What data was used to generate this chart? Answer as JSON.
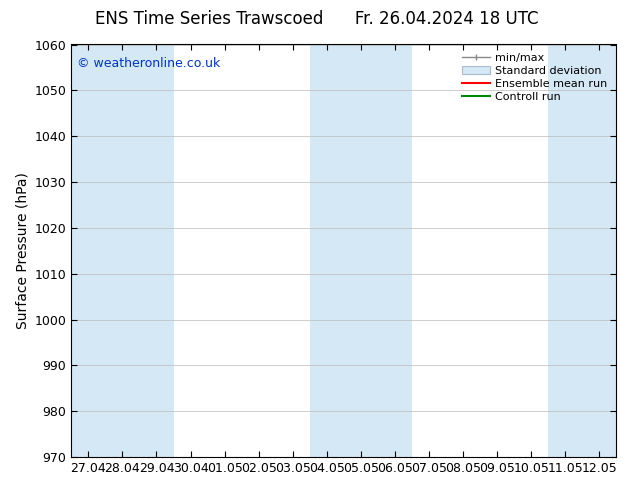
{
  "title_left": "ENS Time Series Trawscoed",
  "title_right": "Fr. 26.04.2024 18 UTC",
  "ylabel": "Surface Pressure (hPa)",
  "ylim": [
    970,
    1060
  ],
  "yticks": [
    970,
    980,
    990,
    1000,
    1010,
    1020,
    1030,
    1040,
    1050,
    1060
  ],
  "x_labels": [
    "27.04",
    "28.04",
    "29.04",
    "30.04",
    "01.05",
    "02.05",
    "03.05",
    "04.05",
    "05.05",
    "06.05",
    "07.05",
    "08.05",
    "09.05",
    "10.05",
    "11.05",
    "12.05"
  ],
  "shaded_indices": [
    0,
    1,
    2,
    7,
    8,
    9,
    14,
    15
  ],
  "shade_color": "#d5e8f5",
  "background_color": "#ffffff",
  "watermark": "© weatheronline.co.uk",
  "legend_items": [
    "min/max",
    "Standard deviation",
    "Ensemble mean run",
    "Controll run"
  ],
  "mean_run_color": "#ff0000",
  "control_run_color": "#008800",
  "title_fontsize": 12,
  "ylabel_fontsize": 10,
  "tick_fontsize": 9,
  "watermark_color": "#0033cc",
  "watermark_fontsize": 9
}
